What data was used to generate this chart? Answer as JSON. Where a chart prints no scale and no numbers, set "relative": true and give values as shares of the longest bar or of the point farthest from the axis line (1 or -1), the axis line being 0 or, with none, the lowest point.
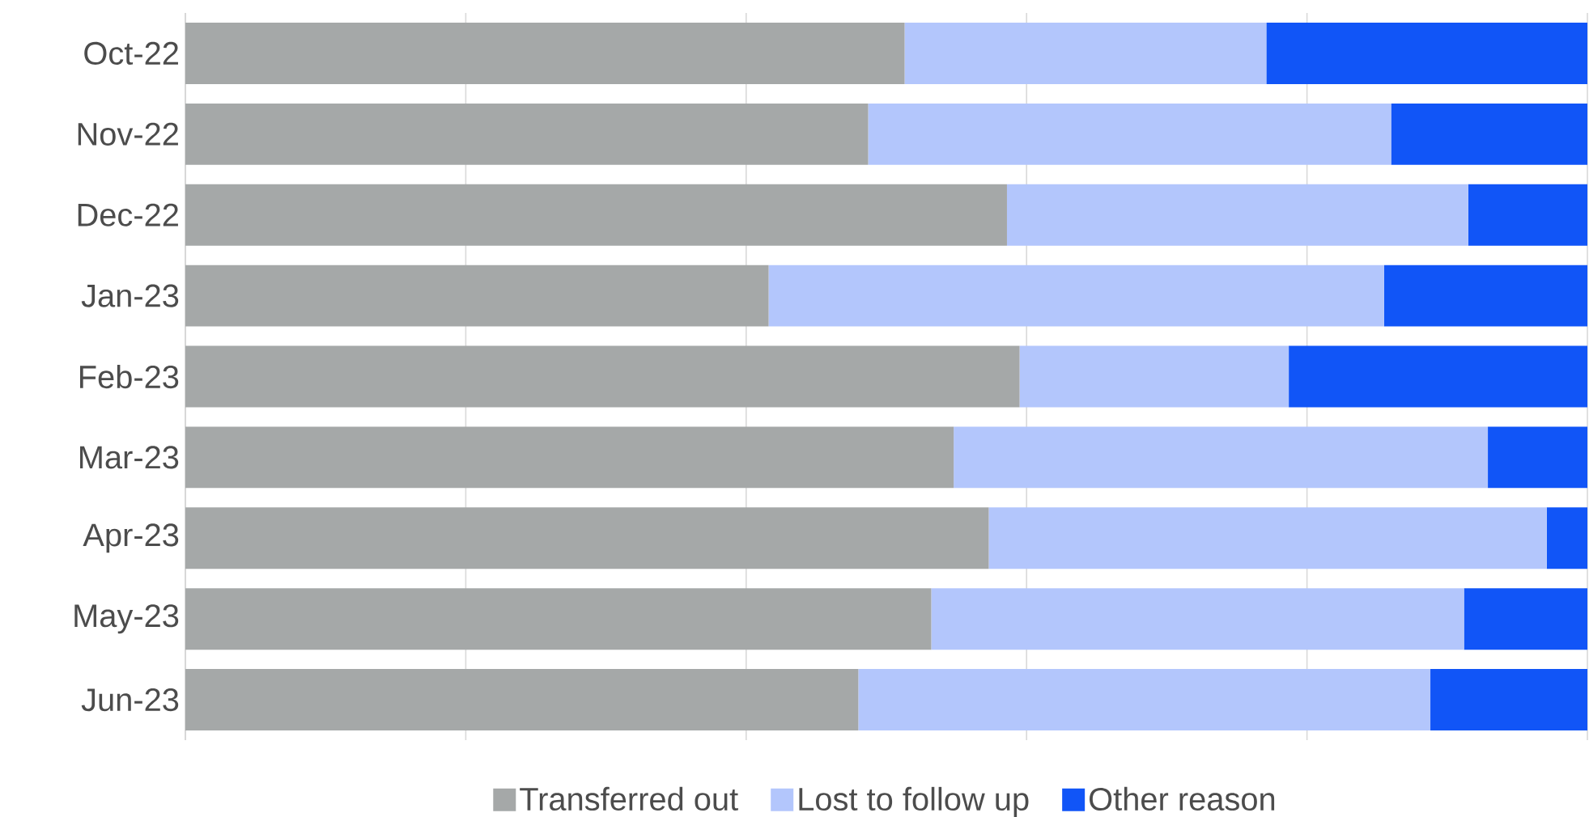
{
  "chart_data": {
    "type": "bar",
    "orientation": "horizontal",
    "stacked": true,
    "relative": true,
    "grid": "x",
    "legend": "bottom",
    "categories": [
      "Oct-22",
      "Nov-22",
      "Dec-22",
      "Jan-23",
      "Feb-23",
      "Mar-23",
      "Apr-23",
      "May-23",
      "Jun-23"
    ],
    "series": [
      {
        "name": "Transferred out",
        "color": "#a5a8a8",
        "values": [
          0.513,
          0.487,
          0.586,
          0.416,
          0.595,
          0.548,
          0.573,
          0.532,
          0.48
        ]
      },
      {
        "name": "Lost to follow up",
        "color": "#b3c6fc",
        "values": [
          0.258,
          0.373,
          0.329,
          0.439,
          0.192,
          0.381,
          0.398,
          0.38,
          0.408
        ]
      },
      {
        "name": "Other reason",
        "color": "#1155f7",
        "values": [
          0.229,
          0.14,
          0.085,
          0.145,
          0.213,
          0.071,
          0.029,
          0.088,
          0.112
        ]
      }
    ]
  }
}
